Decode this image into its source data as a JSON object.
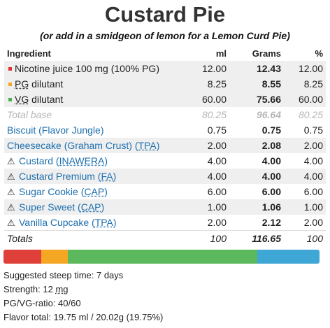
{
  "recipe": {
    "title": "Custard Pie",
    "subtitle": "(or add in a smidgeon of lemon for a Lemon Curd Pie)"
  },
  "table": {
    "headers": {
      "ingredient": "Ingredient",
      "ml": "ml",
      "grams": "Grams",
      "pct": "%"
    },
    "base": [
      {
        "label": "Nicotine juice 100 mg (100% PG)",
        "ml": "12.00",
        "grams": "12.43",
        "pct": "12.00",
        "color": "#e03434"
      },
      {
        "label_pre": "",
        "label_abbr": "PG",
        "label_post": " dilutant",
        "ml": "8.25",
        "grams": "8.55",
        "pct": "8.25",
        "color": "#f5a623"
      },
      {
        "label_pre": "",
        "label_abbr": "VG",
        "label_post": " dilutant",
        "ml": "60.00",
        "grams": "75.66",
        "pct": "60.00",
        "color": "#4caf50"
      }
    ],
    "total_base": {
      "label": "Total base",
      "ml": "80.25",
      "grams": "96.64",
      "pct": "80.25"
    },
    "flavors": [
      {
        "name": "Biscuit (Flavor Jungle)",
        "vendor": "",
        "warning": false,
        "ml": "0.75",
        "grams": "0.75",
        "pct": "0.75"
      },
      {
        "name": "Cheesecake (Graham Crust) (",
        "vendor": "TPA",
        "warning": false,
        "ml": "2.00",
        "grams": "2.08",
        "pct": "2.00"
      },
      {
        "name": "Custard (",
        "vendor": "INAWERA",
        "warning": true,
        "ml": "4.00",
        "grams": "4.00",
        "pct": "4.00"
      },
      {
        "name": "Custard Premium (",
        "vendor": "FA",
        "warning": true,
        "ml": "4.00",
        "grams": "4.00",
        "pct": "4.00"
      },
      {
        "name": "Sugar Cookie (",
        "vendor": "CAP",
        "warning": true,
        "ml": "6.00",
        "grams": "6.00",
        "pct": "6.00"
      },
      {
        "name": "Super Sweet (",
        "vendor": "CAP",
        "warning": true,
        "ml": "1.00",
        "grams": "1.06",
        "pct": "1.00"
      },
      {
        "name": "Vanilla Cupcake (",
        "vendor": "TPA",
        "warning": true,
        "ml": "2.00",
        "grams": "2.12",
        "pct": "2.00"
      }
    ],
    "totals": {
      "label": "Totals",
      "ml": "100",
      "grams": "116.65",
      "pct": "100"
    }
  },
  "bar": {
    "segments": [
      {
        "name": "nicotine",
        "fraction": 0.12,
        "color": "#e0403a"
      },
      {
        "name": "pg",
        "fraction": 0.0825,
        "color": "#f5a623"
      },
      {
        "name": "vg",
        "fraction": 0.6,
        "color": "#5cb85c"
      },
      {
        "name": "flavor",
        "fraction": 0.1975,
        "color": "#3fa7d6"
      }
    ]
  },
  "info": {
    "steep": "Suggested steep time: 7 days",
    "strength_pre": "Strength: 12 ",
    "strength_unit": "mg",
    "ratio": "PG/VG-ratio: 40/60",
    "flavor_total": "Flavor total: 19.75 ml / 20.02g (19.75%)"
  }
}
